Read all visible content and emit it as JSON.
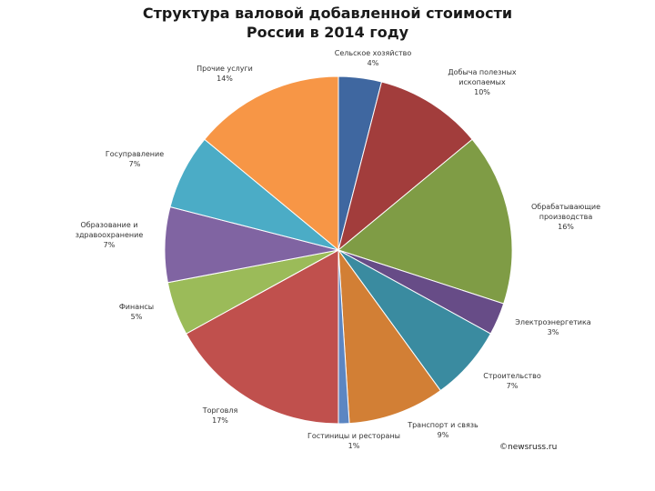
{
  "chart_data": {
    "type": "pie",
    "title_lines": [
      "Структура валовой добавленной стоимости",
      "России в 2014 году"
    ],
    "slices": [
      {
        "label": [
          "Сельское хозяйство"
        ],
        "value": 4,
        "pct": "4%",
        "color": "#3F67A0"
      },
      {
        "label": [
          "Добыча полезных",
          "ископаемых"
        ],
        "value": 10,
        "pct": "10%",
        "color": "#A23D3C"
      },
      {
        "label": [
          "Обрабатывающие",
          "производства"
        ],
        "value": 16,
        "pct": "16%",
        "color": "#7F9C45"
      },
      {
        "label": [
          "Электроэнергетика"
        ],
        "value": 3,
        "pct": "3%",
        "color": "#674C87"
      },
      {
        "label": [
          "Строительство"
        ],
        "value": 7,
        "pct": "7%",
        "color": "#3A8BA0"
      },
      {
        "label": [
          "Транспорт и связь"
        ],
        "value": 9,
        "pct": "9%",
        "color": "#D27F35"
      },
      {
        "label": [
          "Гостиницы и рестораны"
        ],
        "value": 1,
        "pct": "1%",
        "color": "#5C86C2"
      },
      {
        "label": [
          "Торговля"
        ],
        "value": 17,
        "pct": "17%",
        "color": "#C0504D"
      },
      {
        "label": [
          "Финансы"
        ],
        "value": 5,
        "pct": "5%",
        "color": "#9BBB59"
      },
      {
        "label": [
          "Образование и",
          "здравоохранение"
        ],
        "value": 7,
        "pct": "7%",
        "color": "#8064A2"
      },
      {
        "label": [
          "Госуправление"
        ],
        "value": 7,
        "pct": "7%",
        "color": "#4BACC6"
      },
      {
        "label": [
          "Прочие услуги"
        ],
        "value": 14,
        "pct": "14%",
        "color": "#F79646"
      }
    ],
    "legend": "none"
  },
  "credit": "©newsruss.ru"
}
